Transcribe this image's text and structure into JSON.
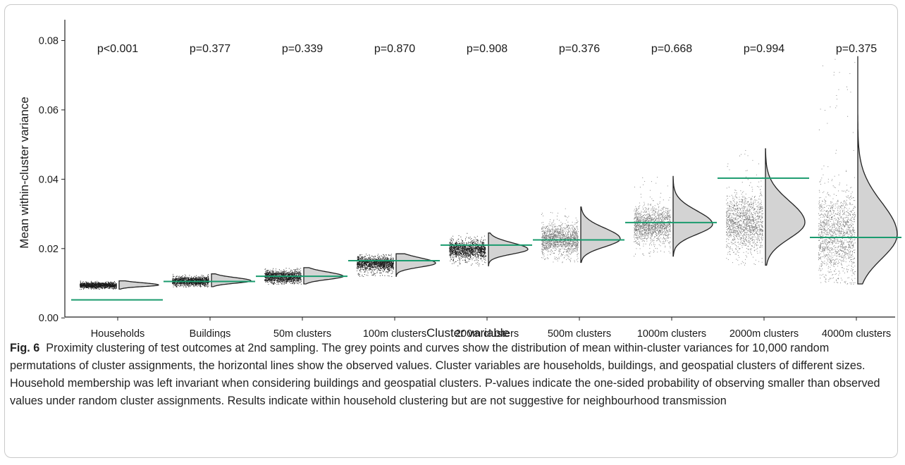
{
  "chart_data": {
    "type": "scatter",
    "subtype": "raincloud (jittered points + half-violin density) with observed-value reference lines",
    "xlabel": "Cluster variable",
    "ylabel": "Mean within-cluster variance",
    "ylim": [
      -0.003,
      0.086
    ],
    "yticks": [
      0.0,
      0.02,
      0.04,
      0.06,
      0.08
    ],
    "ytick_labels": [
      "0.00",
      "0.02",
      "0.04",
      "0.06",
      "0.08"
    ],
    "grid": false,
    "legend": "none",
    "colors": {
      "points": "#000000",
      "density_fill": "#d3d3d3",
      "density_edge": "#222222",
      "observed_line": "#1a9b6e",
      "text": "#1a1a1a"
    },
    "categories": [
      "Households",
      "Buildings",
      "50m clusters",
      "100m clusters",
      "200m clusters",
      "500m clusters",
      "1000m clusters",
      "2000m clusters",
      "4000m clusters"
    ],
    "p_value_labels": [
      "p<0.001",
      "p=0.377",
      "p=0.339",
      "p=0.870",
      "p=0.908",
      "p=0.376",
      "p=0.668",
      "p=0.994",
      "p=0.375"
    ],
    "observed_values": [
      0.0052,
      0.0105,
      0.012,
      0.0165,
      0.021,
      0.0225,
      0.0275,
      0.0403,
      0.0232
    ],
    "permutation_distributions": [
      {
        "category": "Households",
        "center": 0.0095,
        "min": 0.0083,
        "max": 0.0107,
        "spread": 0.0004
      },
      {
        "category": "Buildings",
        "center": 0.0107,
        "min": 0.009,
        "max": 0.0127,
        "spread": 0.0006
      },
      {
        "category": "50m clusters",
        "center": 0.012,
        "min": 0.0098,
        "max": 0.0145,
        "spread": 0.0008
      },
      {
        "category": "100m clusters",
        "center": 0.0158,
        "min": 0.012,
        "max": 0.0185,
        "spread": 0.001
      },
      {
        "category": "200m clusters",
        "center": 0.0198,
        "min": 0.015,
        "max": 0.0245,
        "spread": 0.0012
      },
      {
        "category": "500m clusters",
        "center": 0.0228,
        "min": 0.016,
        "max": 0.032,
        "spread": 0.002
      },
      {
        "category": "1000m clusters",
        "center": 0.027,
        "min": 0.0178,
        "max": 0.0408,
        "spread": 0.0025
      },
      {
        "category": "2000m clusters",
        "center": 0.0275,
        "min": 0.0152,
        "max": 0.0488,
        "spread": 0.004
      },
      {
        "category": "4000m clusters",
        "center": 0.024,
        "min": 0.0098,
        "max": 0.0755,
        "spread": 0.006
      }
    ]
  },
  "caption": {
    "label": "Fig. 6",
    "text": "Proximity clustering of test outcomes at 2nd sampling. The grey points and curves show the distribution of mean within-cluster variances for 10,000 random permutations of cluster assignments, the horizontal lines show the observed values. Cluster variables are households, buildings, and geospatial clusters of different sizes. Household membership was left invariant when considering buildings and geospatial clusters. P-values indicate the one-sided probability of observing smaller than observed values under random cluster assignments. Results indicate within household clustering but are not suggestive for neighbourhood transmission"
  }
}
